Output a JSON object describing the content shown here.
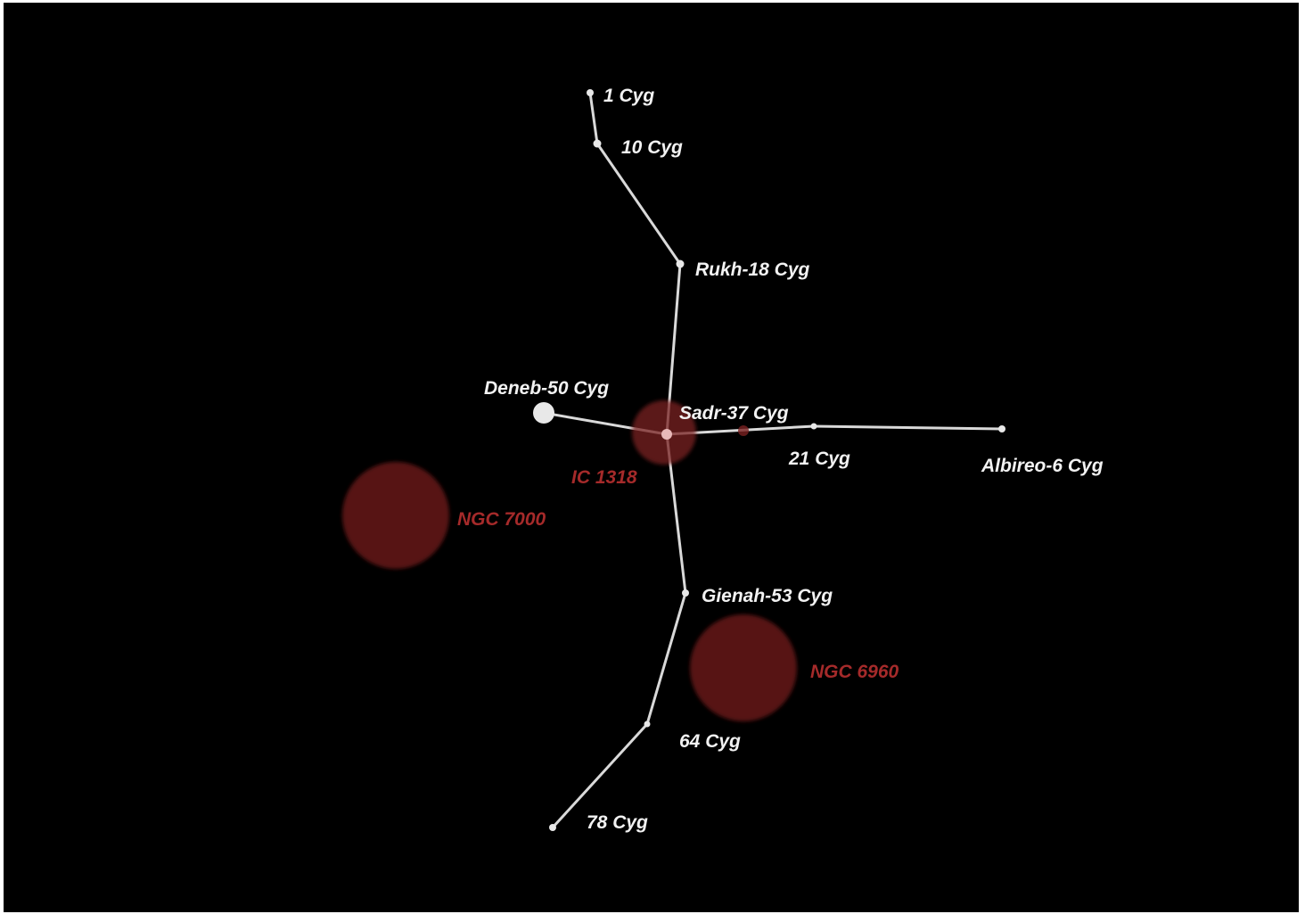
{
  "colors": {
    "background": "#000000",
    "frame": "#ffffff",
    "line": "#d9d9d9",
    "star": "#e8e8e8",
    "star_label": "#f2f2f2",
    "nebula_fill": "#6b1a1a",
    "nebula_label": "#a52a2a"
  },
  "stars": [
    {
      "id": "1-cyg",
      "label": "1 Cyg"
    },
    {
      "id": "10-cyg",
      "label": "10 Cyg"
    },
    {
      "id": "rukh-18-cyg",
      "label": "Rukh-18 Cyg"
    },
    {
      "id": "deneb-50-cyg",
      "label": "Deneb-50 Cyg"
    },
    {
      "id": "sadr-37-cyg",
      "label": "Sadr-37 Cyg"
    },
    {
      "id": "21-cyg",
      "label": "21 Cyg"
    },
    {
      "id": "albireo-6-cyg",
      "label": "Albireo-6 Cyg"
    },
    {
      "id": "gienah-53-cyg",
      "label": "Gienah-53 Cyg"
    },
    {
      "id": "64-cyg",
      "label": "64 Cyg"
    },
    {
      "id": "78-cyg",
      "label": "78 Cyg"
    }
  ],
  "nebulae": [
    {
      "id": "ic-1318",
      "label": "IC 1318"
    },
    {
      "id": "ngc-7000",
      "label": "NGC 7000"
    },
    {
      "id": "ngc-6960",
      "label": "NGC 6960"
    }
  ],
  "edges": [
    [
      "1-cyg",
      "10-cyg"
    ],
    [
      "10-cyg",
      "rukh-18-cyg"
    ],
    [
      "rukh-18-cyg",
      "sadr-37-cyg"
    ],
    [
      "deneb-50-cyg",
      "sadr-37-cyg"
    ],
    [
      "sadr-37-cyg",
      "21-cyg"
    ],
    [
      "21-cyg",
      "albireo-6-cyg"
    ],
    [
      "sadr-37-cyg",
      "gienah-53-cyg"
    ],
    [
      "gienah-53-cyg",
      "64-cyg"
    ],
    [
      "64-cyg",
      "78-cyg"
    ]
  ]
}
